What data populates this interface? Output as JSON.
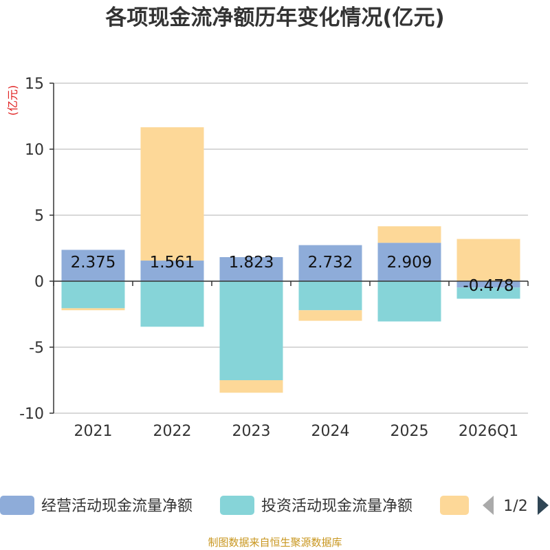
{
  "chart_data": {
    "type": "bar",
    "stacked": true,
    "title": "各项现金流净额历年变化情况(亿元)",
    "ylabel": "(亿元)",
    "xlabel": "",
    "categories": [
      "2021",
      "2022",
      "2023",
      "2024",
      "2025",
      "2026Q1"
    ],
    "ylim": [
      -10,
      15
    ],
    "yticks": [
      -10,
      -5,
      0,
      5,
      10,
      15
    ],
    "grid": true,
    "series": [
      {
        "name": "经营活动现金流量净额",
        "color": "#8eacd9",
        "values": [
          2.375,
          1.561,
          1.823,
          2.732,
          2.909,
          -0.478
        ],
        "data_labels": [
          "2.375",
          "1.561",
          "1.823",
          "2.732",
          "2.909",
          "-0.478"
        ]
      },
      {
        "name": "投资活动现金流量净额",
        "color": "#86d4d8",
        "values": [
          -2.05,
          -3.45,
          -7.5,
          -2.2,
          -3.05,
          -0.85
        ]
      },
      {
        "name": "",
        "color": "#fdd898",
        "values": [
          -0.15,
          10.1,
          -0.95,
          -0.8,
          1.25,
          3.2
        ]
      }
    ],
    "legend": {
      "position": "bottom",
      "page": "1/2"
    },
    "source": "制图数据来自恒生聚源数据库"
  }
}
